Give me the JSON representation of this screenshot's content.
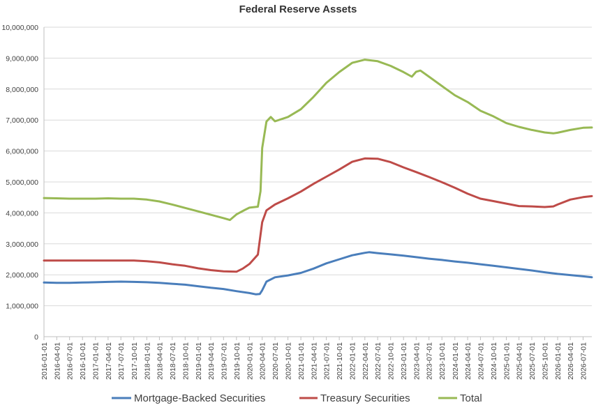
{
  "chart_data": {
    "type": "line",
    "title": "Federal Reserve Assets",
    "xlabel": "",
    "ylabel": "",
    "ylim": [
      0,
      10000000
    ],
    "yticks": [
      "0",
      "1,000,000",
      "2,000,000",
      "3,000,000",
      "4,000,000",
      "5,000,000",
      "6,000,000",
      "7,000,000",
      "8,000,000",
      "9,000,000",
      "10,000,000"
    ],
    "grid": true,
    "legend_position": "bottom",
    "x_start": "2016-01-01",
    "x_end": "2026-09-01",
    "x_tick_labels": [
      "2016-01-01",
      "2016-04-01",
      "2016-07-01",
      "2016-10-01",
      "2017-01-01",
      "2017-04-01",
      "2017-07-01",
      "2017-10-01",
      "2018-01-01",
      "2018-04-01",
      "2018-07-01",
      "2018-10-01",
      "2019-01-01",
      "2019-04-01",
      "2019-07-01",
      "2019-10-01",
      "2020-01-01",
      "2020-04-01",
      "2020-07-01",
      "2020-10-01",
      "2021-01-01",
      "2021-04-01",
      "2021-07-01",
      "2021-10-01",
      "2022-01-01",
      "2022-04-01",
      "2022-07-01",
      "2022-10-01",
      "2023-01-01",
      "2023-04-01",
      "2023-07-01",
      "2023-10-01",
      "2024-01-01",
      "2024-04-01",
      "2024-07-01",
      "2024-10-01",
      "2025-01-01",
      "2025-04-01",
      "2025-07-01",
      "2025-10-01",
      "2026-01-01",
      "2026-04-01",
      "2026-07-01"
    ],
    "series": [
      {
        "name": "Mortgage-Backed Securities",
        "color": "#4a7ebb",
        "points": [
          [
            "2016-01-01",
            1750000
          ],
          [
            "2016-04-01",
            1740000
          ],
          [
            "2016-07-01",
            1740000
          ],
          [
            "2016-10-01",
            1750000
          ],
          [
            "2017-01-01",
            1760000
          ],
          [
            "2017-04-01",
            1770000
          ],
          [
            "2017-07-01",
            1780000
          ],
          [
            "2017-10-01",
            1770000
          ],
          [
            "2018-01-01",
            1760000
          ],
          [
            "2018-04-01",
            1740000
          ],
          [
            "2018-07-01",
            1710000
          ],
          [
            "2018-10-01",
            1680000
          ],
          [
            "2019-01-01",
            1630000
          ],
          [
            "2019-04-01",
            1580000
          ],
          [
            "2019-07-01",
            1540000
          ],
          [
            "2019-10-01",
            1470000
          ],
          [
            "2020-01-01",
            1410000
          ],
          [
            "2020-02-15",
            1370000
          ],
          [
            "2020-03-15",
            1380000
          ],
          [
            "2020-04-01",
            1500000
          ],
          [
            "2020-05-01",
            1780000
          ],
          [
            "2020-07-01",
            1920000
          ],
          [
            "2020-10-01",
            1980000
          ],
          [
            "2021-01-01",
            2060000
          ],
          [
            "2021-04-01",
            2200000
          ],
          [
            "2021-07-01",
            2370000
          ],
          [
            "2021-10-01",
            2500000
          ],
          [
            "2022-01-01",
            2630000
          ],
          [
            "2022-04-01",
            2710000
          ],
          [
            "2022-05-01",
            2730000
          ],
          [
            "2022-07-01",
            2700000
          ],
          [
            "2022-10-01",
            2660000
          ],
          [
            "2023-01-01",
            2620000
          ],
          [
            "2023-04-01",
            2570000
          ],
          [
            "2023-07-01",
            2520000
          ],
          [
            "2023-10-01",
            2480000
          ],
          [
            "2024-01-01",
            2430000
          ],
          [
            "2024-04-01",
            2390000
          ],
          [
            "2024-07-01",
            2340000
          ],
          [
            "2024-10-01",
            2290000
          ],
          [
            "2025-01-01",
            2240000
          ],
          [
            "2025-04-01",
            2190000
          ],
          [
            "2025-07-01",
            2140000
          ],
          [
            "2025-10-01",
            2080000
          ],
          [
            "2026-01-01",
            2030000
          ],
          [
            "2026-04-01",
            1990000
          ],
          [
            "2026-07-01",
            1950000
          ],
          [
            "2026-09-01",
            1920000
          ]
        ]
      },
      {
        "name": "Treasury Securities",
        "color": "#be4b48",
        "points": [
          [
            "2016-01-01",
            2460000
          ],
          [
            "2016-04-01",
            2460000
          ],
          [
            "2016-07-01",
            2460000
          ],
          [
            "2016-10-01",
            2460000
          ],
          [
            "2017-01-01",
            2460000
          ],
          [
            "2017-04-01",
            2460000
          ],
          [
            "2017-07-01",
            2460000
          ],
          [
            "2017-10-01",
            2460000
          ],
          [
            "2018-01-01",
            2440000
          ],
          [
            "2018-04-01",
            2400000
          ],
          [
            "2018-07-01",
            2340000
          ],
          [
            "2018-10-01",
            2290000
          ],
          [
            "2019-01-01",
            2210000
          ],
          [
            "2019-04-01",
            2150000
          ],
          [
            "2019-07-01",
            2110000
          ],
          [
            "2019-10-01",
            2100000
          ],
          [
            "2019-11-15",
            2200000
          ],
          [
            "2020-01-01",
            2350000
          ],
          [
            "2020-03-01",
            2650000
          ],
          [
            "2020-04-01",
            3700000
          ],
          [
            "2020-05-01",
            4080000
          ],
          [
            "2020-07-01",
            4270000
          ],
          [
            "2020-10-01",
            4470000
          ],
          [
            "2021-01-01",
            4690000
          ],
          [
            "2021-04-01",
            4940000
          ],
          [
            "2021-07-01",
            5170000
          ],
          [
            "2021-10-01",
            5400000
          ],
          [
            "2022-01-01",
            5650000
          ],
          [
            "2022-04-01",
            5760000
          ],
          [
            "2022-07-01",
            5750000
          ],
          [
            "2022-10-01",
            5640000
          ],
          [
            "2023-01-01",
            5470000
          ],
          [
            "2023-04-01",
            5320000
          ],
          [
            "2023-07-01",
            5160000
          ],
          [
            "2023-10-01",
            4990000
          ],
          [
            "2024-01-01",
            4810000
          ],
          [
            "2024-04-01",
            4620000
          ],
          [
            "2024-07-01",
            4460000
          ],
          [
            "2024-10-01",
            4380000
          ],
          [
            "2025-01-01",
            4300000
          ],
          [
            "2025-04-01",
            4220000
          ],
          [
            "2025-07-01",
            4210000
          ],
          [
            "2025-10-01",
            4190000
          ],
          [
            "2025-12-01",
            4210000
          ],
          [
            "2026-01-01",
            4270000
          ],
          [
            "2026-04-01",
            4430000
          ],
          [
            "2026-07-01",
            4510000
          ],
          [
            "2026-09-01",
            4540000
          ]
        ]
      },
      {
        "name": "Total",
        "color": "#98b954",
        "points": [
          [
            "2016-01-01",
            4480000
          ],
          [
            "2016-04-01",
            4470000
          ],
          [
            "2016-07-01",
            4460000
          ],
          [
            "2016-10-01",
            4460000
          ],
          [
            "2017-01-01",
            4460000
          ],
          [
            "2017-04-01",
            4470000
          ],
          [
            "2017-07-01",
            4460000
          ],
          [
            "2017-10-01",
            4460000
          ],
          [
            "2018-01-01",
            4430000
          ],
          [
            "2018-04-01",
            4370000
          ],
          [
            "2018-07-01",
            4270000
          ],
          [
            "2018-10-01",
            4160000
          ],
          [
            "2019-01-01",
            4050000
          ],
          [
            "2019-04-01",
            3940000
          ],
          [
            "2019-07-01",
            3830000
          ],
          [
            "2019-08-15",
            3770000
          ],
          [
            "2019-10-01",
            3950000
          ],
          [
            "2019-12-01",
            4100000
          ],
          [
            "2020-01-01",
            4170000
          ],
          [
            "2020-03-01",
            4200000
          ],
          [
            "2020-03-20",
            4700000
          ],
          [
            "2020-04-01",
            6100000
          ],
          [
            "2020-05-01",
            6950000
          ],
          [
            "2020-06-01",
            7100000
          ],
          [
            "2020-07-01",
            6960000
          ],
          [
            "2020-10-01",
            7100000
          ],
          [
            "2021-01-01",
            7350000
          ],
          [
            "2021-04-01",
            7750000
          ],
          [
            "2021-07-01",
            8200000
          ],
          [
            "2021-10-01",
            8550000
          ],
          [
            "2022-01-01",
            8850000
          ],
          [
            "2022-04-01",
            8950000
          ],
          [
            "2022-07-01",
            8900000
          ],
          [
            "2022-10-01",
            8750000
          ],
          [
            "2023-01-01",
            8550000
          ],
          [
            "2023-03-01",
            8400000
          ],
          [
            "2023-04-01",
            8560000
          ],
          [
            "2023-05-01",
            8600000
          ],
          [
            "2023-07-01",
            8400000
          ],
          [
            "2023-10-01",
            8100000
          ],
          [
            "2024-01-01",
            7800000
          ],
          [
            "2024-04-01",
            7580000
          ],
          [
            "2024-07-01",
            7300000
          ],
          [
            "2024-10-01",
            7120000
          ],
          [
            "2025-01-01",
            6900000
          ],
          [
            "2025-04-01",
            6780000
          ],
          [
            "2025-07-01",
            6680000
          ],
          [
            "2025-10-01",
            6600000
          ],
          [
            "2025-12-01",
            6570000
          ],
          [
            "2026-01-01",
            6590000
          ],
          [
            "2026-04-01",
            6680000
          ],
          [
            "2026-07-01",
            6750000
          ],
          [
            "2026-09-01",
            6760000
          ]
        ]
      }
    ]
  }
}
